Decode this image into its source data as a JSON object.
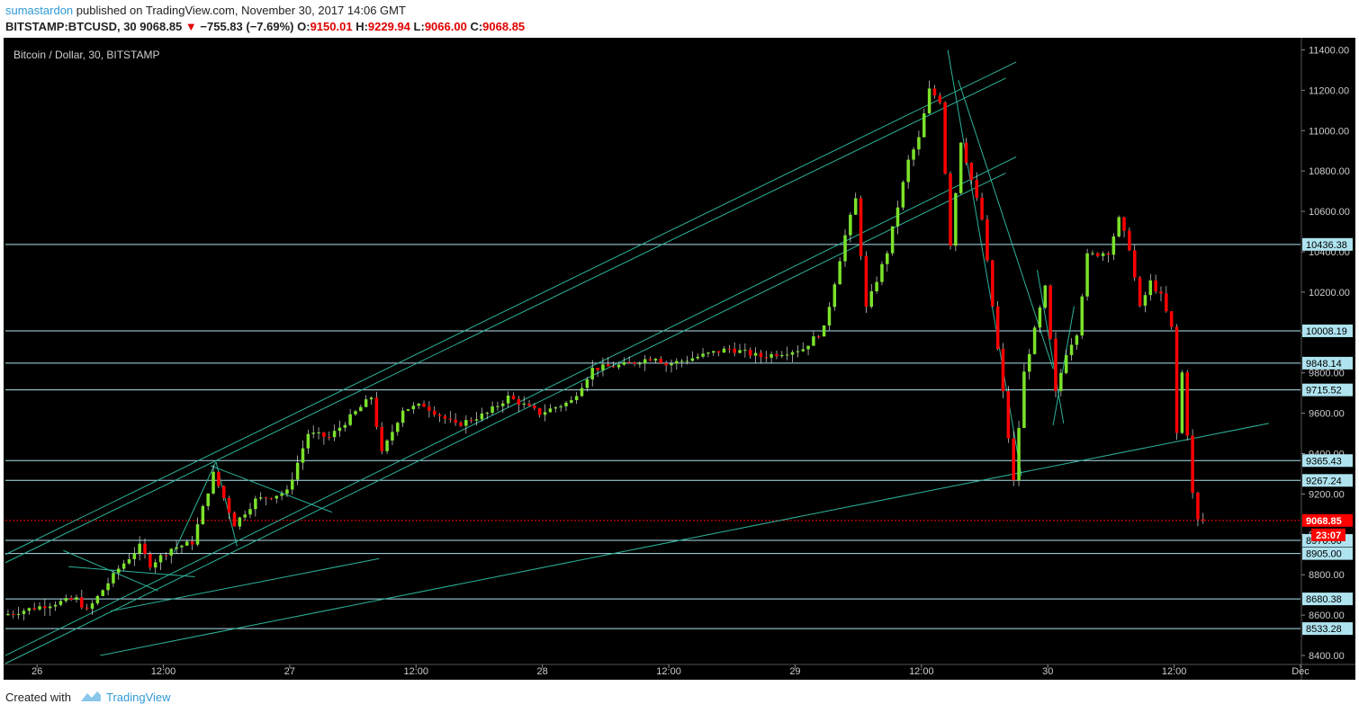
{
  "header": {
    "author": "sumastardon",
    "published_text": "published on TradingView.com, November 30, 2017 14:06 GMT",
    "symbol": "BITSTAMP:BTCUSD, 30",
    "last": "9068.85",
    "change_arrow": "▼",
    "change": "−755.83 (−7.69%)",
    "o_label": "O:",
    "o_value": "9150.01",
    "h_label": "H:",
    "h_value": "9229.94",
    "l_label": "L:",
    "l_value": "9066.00",
    "c_label": "C:",
    "c_value": "9068.85"
  },
  "footer": {
    "created_with": "Created with",
    "brand": "TradingView"
  },
  "colors": {
    "background": "#000000",
    "up": "#7be22a",
    "down": "#ff0000",
    "level_line": "#aee3ef",
    "trend_line": "#2db39a",
    "price_tag": "#aee3ef",
    "last_tag": "#ff0000"
  },
  "chart_data": {
    "type": "candlestick",
    "title": "Bitcoin / Dollar, 30, BITSTAMP",
    "y_ticks": [
      "8400.00",
      "8600.00",
      "8800.00",
      "9000.00",
      "9200.00",
      "9400.00",
      "9600.00",
      "9800.00",
      "10000.00",
      "10200.00",
      "10400.00",
      "10600.00",
      "10800.00",
      "11000.00",
      "11200.00",
      "11400.00"
    ],
    "x_ticks": [
      "26",
      "12:00",
      "27",
      "12:00",
      "28",
      "12:00",
      "29",
      "12:00",
      "30",
      "12:00",
      "Dec"
    ],
    "ylim": [
      8360,
      11460
    ],
    "x_range": [
      "2017-11-25 21:00",
      "2017-12-01 00:00"
    ],
    "horizontal_levels": [
      {
        "price": 10436.38,
        "label": "10436.38"
      },
      {
        "price": 10008.19,
        "label": "10008.19"
      },
      {
        "price": 9848.14,
        "label": "9848.14"
      },
      {
        "price": 9715.52,
        "label": "9715.52"
      },
      {
        "price": 9365.43,
        "label": "9365.43"
      },
      {
        "price": 9267.24,
        "label": "9267.24"
      },
      {
        "price": 8970.0,
        "label": "8970.00"
      },
      {
        "price": 8905.0,
        "label": "8905.00"
      },
      {
        "price": 8680.38,
        "label": "8680.38"
      },
      {
        "price": 8533.28,
        "label": "8533.28"
      }
    ],
    "last_price": {
      "price": 9068.85,
      "label": "9068.85",
      "countdown": "23:07"
    },
    "path_points": [
      [
        "2017-11-25 21:00",
        8600
      ],
      [
        "2017-11-26 02:00",
        8660
      ],
      [
        "2017-11-26 04:00",
        8680
      ],
      [
        "2017-11-26 05:00",
        8620
      ],
      [
        "2017-11-26 08:00",
        8830
      ],
      [
        "2017-11-26 10:00",
        8940
      ],
      [
        "2017-11-26 11:00",
        8850
      ],
      [
        "2017-11-26 13:00",
        8930
      ],
      [
        "2017-11-26 15:00",
        8960
      ],
      [
        "2017-11-26 17:00",
        9300
      ],
      [
        "2017-11-26 18:00",
        9180
      ],
      [
        "2017-11-26 19:00",
        9050
      ],
      [
        "2017-11-26 21:00",
        9170
      ],
      [
        "2017-11-27 00:00",
        9210
      ],
      [
        "2017-11-27 02:00",
        9500
      ],
      [
        "2017-11-27 04:00",
        9480
      ],
      [
        "2017-11-27 06:00",
        9580
      ],
      [
        "2017-11-27 08:00",
        9680
      ],
      [
        "2017-11-27 09:00",
        9400
      ],
      [
        "2017-11-27 11:00",
        9620
      ],
      [
        "2017-11-27 13:00",
        9640
      ],
      [
        "2017-11-27 16:00",
        9540
      ],
      [
        "2017-11-27 19:00",
        9600
      ],
      [
        "2017-11-27 21:00",
        9680
      ],
      [
        "2017-11-28 00:00",
        9600
      ],
      [
        "2017-11-28 03:00",
        9660
      ],
      [
        "2017-11-28 05:00",
        9820
      ],
      [
        "2017-11-28 08:00",
        9840
      ],
      [
        "2017-11-28 11:00",
        9880
      ],
      [
        "2017-11-28 12:00",
        9840
      ],
      [
        "2017-11-28 15:00",
        9880
      ],
      [
        "2017-11-28 18:00",
        9920
      ],
      [
        "2017-11-28 21:00",
        9880
      ],
      [
        "2017-11-29 01:00",
        9920
      ],
      [
        "2017-11-29 03:00",
        10020
      ],
      [
        "2017-11-29 05:00",
        10480
      ],
      [
        "2017-11-29 06:00",
        10660
      ],
      [
        "2017-11-29 07:00",
        10120
      ],
      [
        "2017-11-29 09:00",
        10400
      ],
      [
        "2017-11-29 11:00",
        10850
      ],
      [
        "2017-11-29 12:00",
        10960
      ],
      [
        "2017-11-29 13:00",
        11200
      ],
      [
        "2017-11-29 14:00",
        11150
      ],
      [
        "2017-11-29 15:00",
        10440
      ],
      [
        "2017-11-29 16:00",
        10950
      ],
      [
        "2017-11-29 18:00",
        10560
      ],
      [
        "2017-11-29 20:00",
        9700
      ],
      [
        "2017-11-29 21:00",
        9260
      ],
      [
        "2017-11-29 22:00",
        9800
      ],
      [
        "2017-11-30 00:00",
        10220
      ],
      [
        "2017-11-30 01:00",
        9700
      ],
      [
        "2017-11-30 02:00",
        9900
      ],
      [
        "2017-11-30 03:00",
        10000
      ],
      [
        "2017-11-30 04:00",
        10380
      ],
      [
        "2017-11-30 06:00",
        10400
      ],
      [
        "2017-11-30 07:00",
        10560
      ],
      [
        "2017-11-30 08:00",
        10420
      ],
      [
        "2017-11-30 09:00",
        10120
      ],
      [
        "2017-11-30 10:00",
        10250
      ],
      [
        "2017-11-30 11:00",
        10180
      ],
      [
        "2017-11-30 12:00",
        10020
      ],
      [
        "2017-11-30 12:30",
        9500
      ],
      [
        "2017-11-30 13:00",
        9800
      ],
      [
        "2017-11-30 14:00",
        9200
      ],
      [
        "2017-11-30 14:30",
        9069
      ]
    ],
    "trend_lines": [
      [
        [
          "2017-11-25 21:00",
          8900
        ],
        [
          "2017-11-29 21:00",
          11340
        ]
      ],
      [
        [
          "2017-11-25 21:00",
          8860
        ],
        [
          "2017-11-29 20:00",
          11260
        ]
      ],
      [
        [
          "2017-11-25 21:00",
          8400
        ],
        [
          "2017-11-29 21:00",
          10870
        ]
      ],
      [
        [
          "2017-11-25 21:00",
          8360
        ],
        [
          "2017-11-29 20:00",
          10790
        ]
      ],
      [
        [
          "2017-11-26 06:00",
          8400
        ],
        [
          "2017-11-30 21:00",
          9550
        ]
      ],
      [
        [
          "2017-11-26 02:30",
          8920
        ],
        [
          "2017-11-26 11:30",
          8720
        ]
      ],
      [
        [
          "2017-11-26 03:00",
          8840
        ],
        [
          "2017-11-26 15:00",
          8790
        ]
      ],
      [
        [
          "2017-11-26 07:00",
          8620
        ],
        [
          "2017-11-27 08:30",
          8880
        ]
      ],
      [
        [
          "2017-11-26 16:30",
          9340
        ],
        [
          "2017-11-27 04:00",
          9110
        ]
      ],
      [
        [
          "2017-11-26 13:00",
          8910
        ],
        [
          "2017-11-26 17:00",
          9360
        ]
      ],
      [
        [
          "2017-11-26 17:00",
          9360
        ],
        [
          "2017-11-26 19:00",
          8940
        ]
      ],
      [
        [
          "2017-11-29 14:30",
          11400
        ],
        [
          "2017-11-29 21:30",
          9290
        ]
      ],
      [
        [
          "2017-11-29 15:30",
          11250
        ],
        [
          "2017-11-30 00:30",
          9820
        ]
      ],
      [
        [
          "2017-11-29 23:00",
          10310
        ],
        [
          "2017-11-30 01:30",
          9550
        ]
      ],
      [
        [
          "2017-11-30 00:30",
          9540
        ],
        [
          "2017-11-30 02:30",
          10130
        ]
      ]
    ]
  }
}
